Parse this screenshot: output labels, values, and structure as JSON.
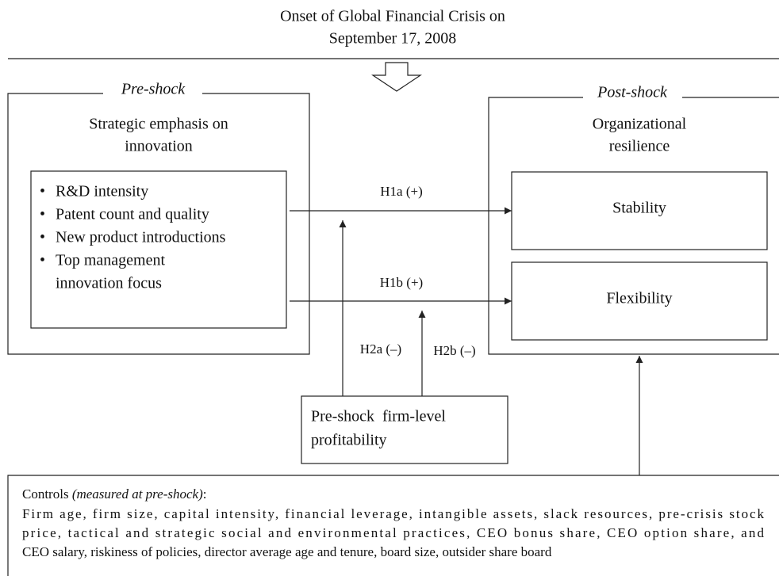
{
  "header": {
    "title_lines": [
      "Onset of Global Financial Crisis on",
      "September 17, 2008"
    ]
  },
  "pre_shock": {
    "label": "Pre-shock",
    "heading_lines": [
      "Strategic emphasis on",
      "innovation"
    ],
    "bullets": [
      "R&D intensity",
      "Patent count and quality",
      "New product introductions",
      "Top management",
      "innovation focus"
    ]
  },
  "post_shock": {
    "label": "Post-shock",
    "heading_lines": [
      "Organizational",
      "resilience"
    ],
    "outcomes": [
      "Stability",
      "Flexibility"
    ]
  },
  "moderator": {
    "lines": [
      "Pre-shock  firm-level",
      "profitability"
    ]
  },
  "hypotheses": [
    "H1a (+)",
    "H1b (+)",
    "H2a (–)",
    "H2b (–)"
  ],
  "controls": {
    "label": "Controls",
    "qualifier": "(measured at pre-shock)",
    "colon": ":",
    "lines": [
      "Firm age, firm size, capital intensity, financial leverage, intangible assets, slack resources, pre-crisis stock",
      "price, tactical and strategic social and environmental practices, CEO bonus share, CEO option share, and",
      "CEO salary, riskiness of policies, director average age and tenure, board size, outsider share board"
    ]
  }
}
